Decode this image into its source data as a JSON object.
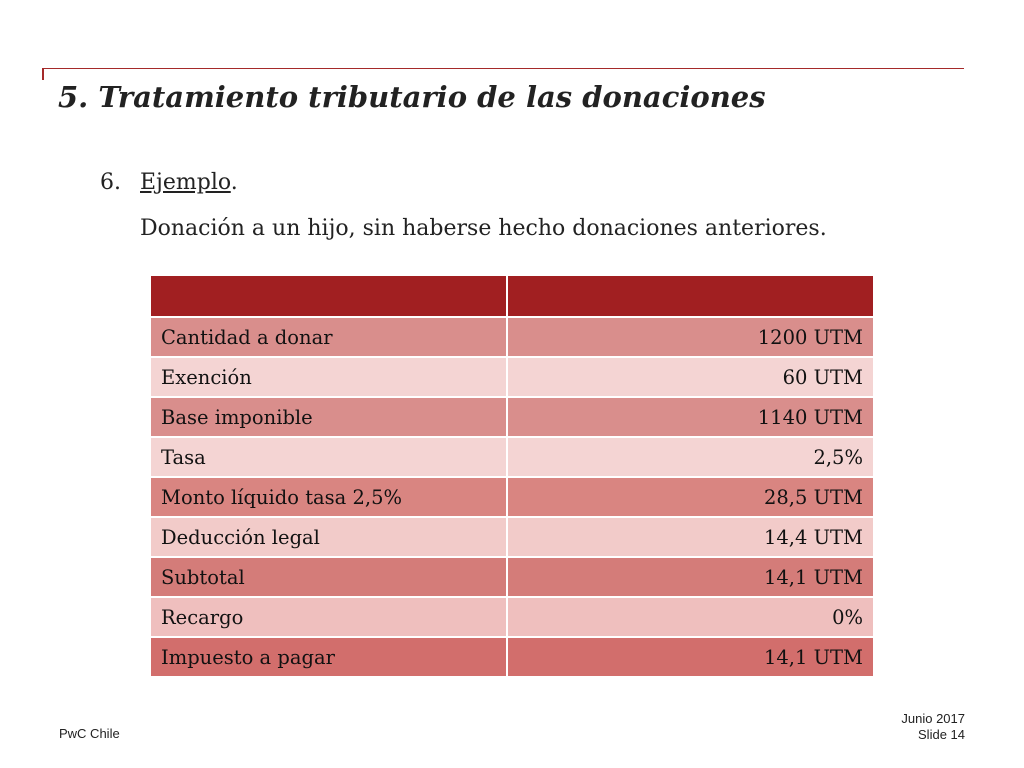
{
  "slide": {
    "title": "5. Tratamiento tributario de las donaciones",
    "item_number": "6.",
    "item_label": "Ejemplo",
    "item_suffix": ".",
    "description": "Donación a un hijo, sin haberse hecho donaciones anteriores."
  },
  "table": {
    "rows": [
      {
        "label": "Cantidad a donar",
        "value": "1200 UTM",
        "color": "#d98e8c"
      },
      {
        "label": "Exención",
        "value": "60 UTM",
        "color": "#f4d4d3"
      },
      {
        "label": "Base imponible",
        "value": "1140 UTM",
        "color": "#d98e8c"
      },
      {
        "label": "Tasa",
        "value": "2,5%",
        "color": "#f4d4d3"
      },
      {
        "label": "Monto líquido tasa 2,5%",
        "value": "28,5 UTM",
        "color": "#d98581"
      },
      {
        "label": "Deducción legal",
        "value": "14,4 UTM",
        "color": "#f2cbc9"
      },
      {
        "label": "Subtotal",
        "value": "14,1 UTM",
        "color": "#d47c79"
      },
      {
        "label": "Recargo",
        "value": "0%",
        "color": "#efbfbe"
      },
      {
        "label": "Impuesto a pagar",
        "value": "14,1 UTM",
        "color": "#d26e6c"
      }
    ],
    "header_color": "#a11f21"
  },
  "footer": {
    "company": "PwC Chile",
    "date": "Junio 2017",
    "slide": "Slide 14"
  }
}
